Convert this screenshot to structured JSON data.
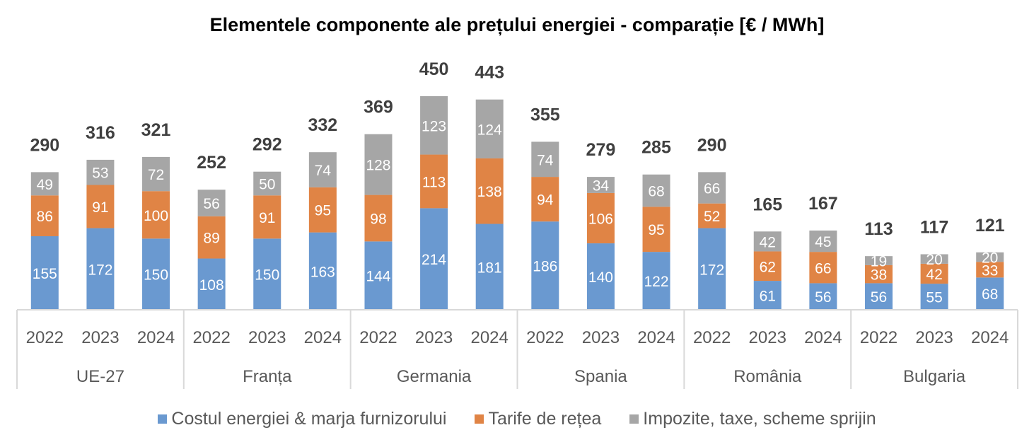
{
  "chart_data": {
    "type": "bar",
    "stacked": true,
    "title": "Elementele componente ale prețului energiei - comparație [€ / MWh]",
    "xlabel": "",
    "ylabel": "",
    "ylim": [
      0,
      450
    ],
    "grid": false,
    "legend_position": "bottom",
    "groups": [
      "UE-27",
      "Franța",
      "Germania",
      "Spania",
      "România",
      "Bulgaria"
    ],
    "years": [
      "2022",
      "2023",
      "2024"
    ],
    "series": [
      {
        "name": "Costul energiei & marja furnizorului",
        "color": "#6A99D0",
        "values": [
          155,
          172,
          150,
          108,
          150,
          163,
          144,
          214,
          181,
          186,
          140,
          122,
          172,
          61,
          56,
          56,
          55,
          68
        ]
      },
      {
        "name": "Tarife de rețea",
        "color": "#E08445",
        "values": [
          86,
          91,
          100,
          89,
          91,
          95,
          98,
          113,
          138,
          94,
          106,
          95,
          52,
          62,
          66,
          38,
          42,
          33
        ]
      },
      {
        "name": "Impozite, taxe, scheme sprijin",
        "color": "#A6A6A6",
        "values": [
          49,
          53,
          72,
          56,
          50,
          74,
          128,
          123,
          124,
          74,
          34,
          68,
          66,
          42,
          45,
          19,
          20,
          20
        ]
      }
    ],
    "totals": [
      290,
      316,
      321,
      252,
      292,
      332,
      369,
      450,
      443,
      355,
      279,
      285,
      290,
      165,
      167,
      113,
      117,
      121
    ]
  }
}
